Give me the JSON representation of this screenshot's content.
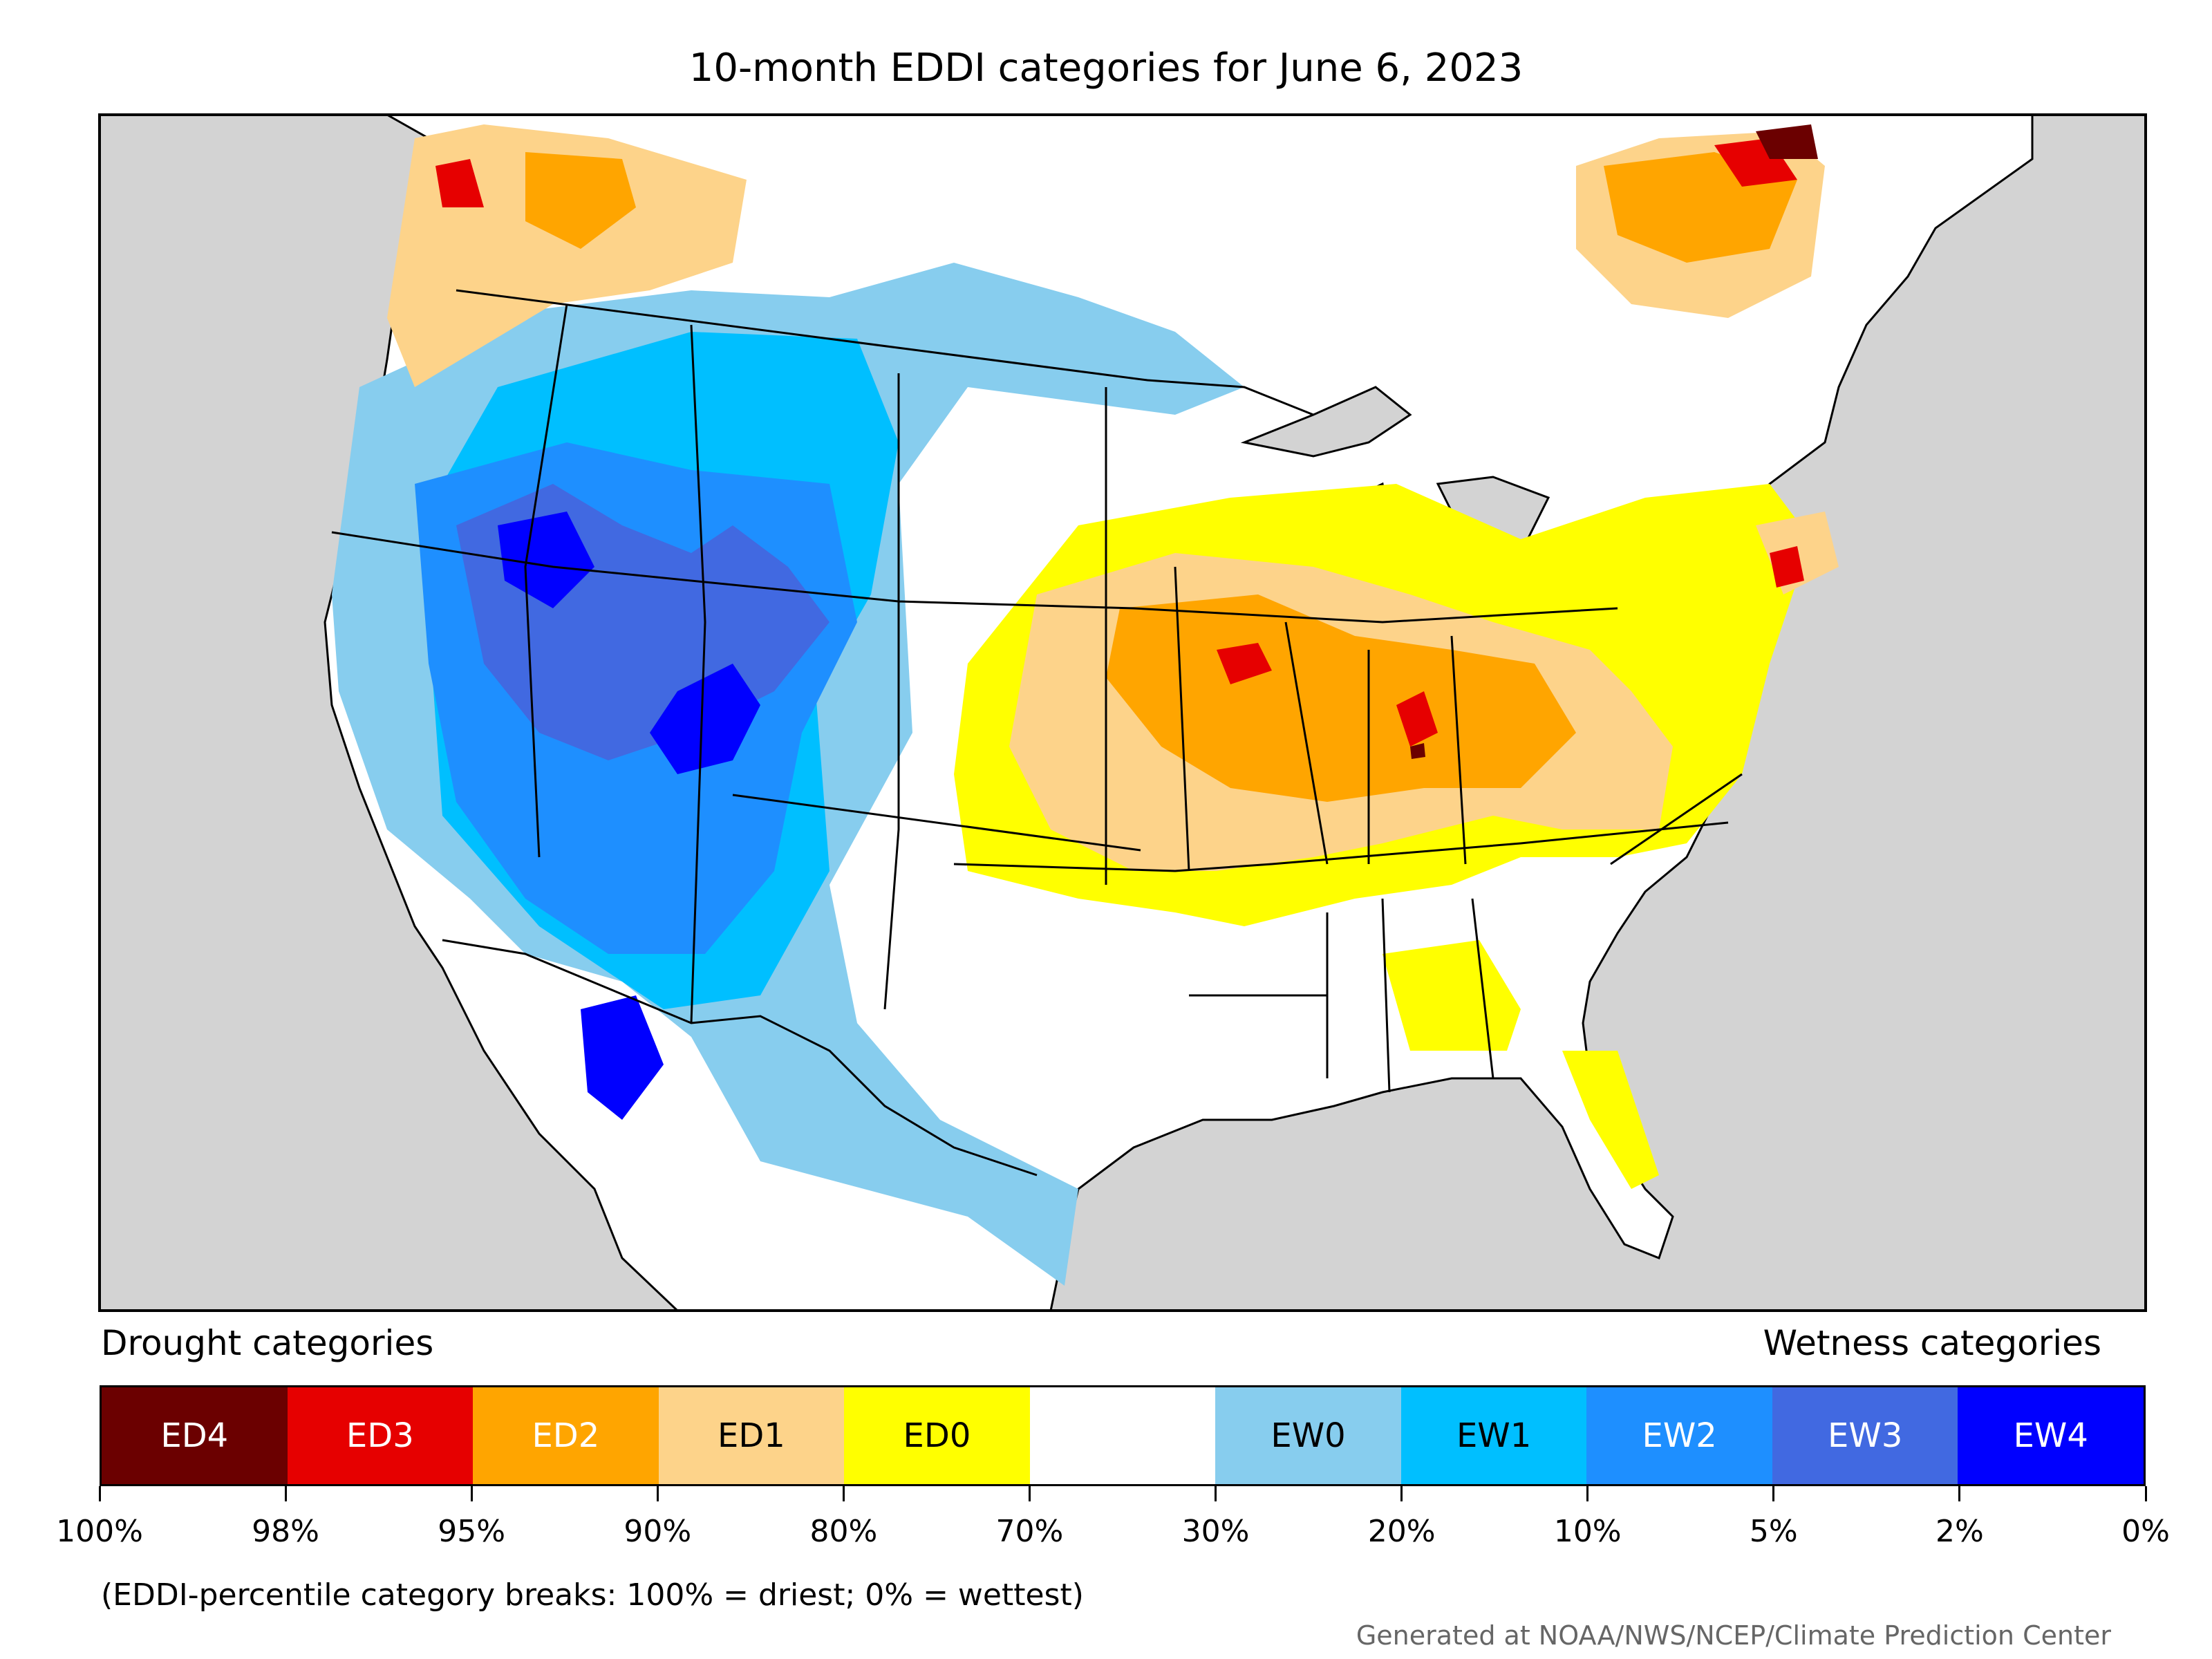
{
  "title": "10-month EDDI categories for June 6, 2023",
  "legend": {
    "left_heading": "Drought categories",
    "right_heading": "Wetness categories",
    "categories": [
      {
        "label": "ED4",
        "color": "#6b0000",
        "text_color": "#ffffff"
      },
      {
        "label": "ED3",
        "color": "#e60000",
        "text_color": "#ffffff"
      },
      {
        "label": "ED2",
        "color": "#ffa500",
        "text_color": "#ffffff"
      },
      {
        "label": "ED1",
        "color": "#fdd38a",
        "text_color": "#000000"
      },
      {
        "label": "ED0",
        "color": "#ffff00",
        "text_color": "#000000"
      },
      {
        "label": "",
        "color": "#ffffff",
        "text_color": "#000000"
      },
      {
        "label": "EW0",
        "color": "#87cdee",
        "text_color": "#000000"
      },
      {
        "label": "EW1",
        "color": "#00bfff",
        "text_color": "#000000"
      },
      {
        "label": "EW2",
        "color": "#1e8fff",
        "text_color": "#ffffff"
      },
      {
        "label": "EW3",
        "color": "#4169e1",
        "text_color": "#ffffff"
      },
      {
        "label": "EW4",
        "color": "#0000ff",
        "text_color": "#ffffff"
      }
    ],
    "breaks": [
      "100%",
      "98%",
      "95%",
      "90%",
      "80%",
      "70%",
      "30%",
      "20%",
      "10%",
      "5%",
      "2%",
      "0%"
    ]
  },
  "footnote": "(EDDI-percentile category breaks: 100% = driest; 0% = wettest)",
  "credit": "Generated at NOAA/NWS/NCEP/Climate Prediction Center",
  "map": {
    "ocean_color": "#d3d3d3",
    "land_color": "#ffffff",
    "border_color": "#000000"
  }
}
